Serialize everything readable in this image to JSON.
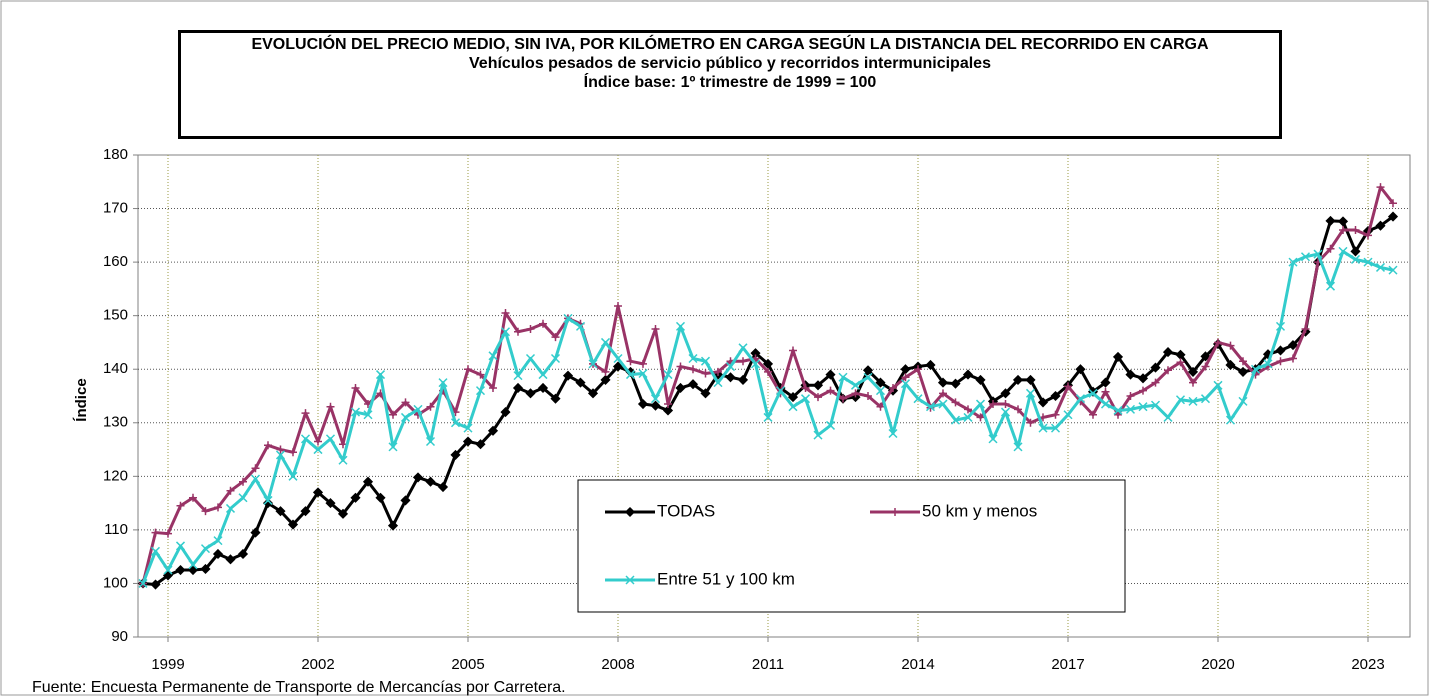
{
  "chart_data": {
    "type": "line",
    "title": "EVOLUCIÓN DEL PRECIO MEDIO, SIN IVA, POR KILÓMETRO EN CARGA SEGÚN LA DISTANCIA DEL RECORRIDO EN CARGA",
    "subtitle": "Vehículos pesados de servicio público y recorridos intermunicipales",
    "subtitle2": "Índice base: 1º trimestre de 1999 = 100",
    "ylabel": "Índice",
    "source": "Fuente: Encuesta Permanente de Transporte de Mercancías por Carretera.",
    "x": [
      1999,
      1999.25,
      1999.5,
      1999.75,
      2000,
      2000.25,
      2000.5,
      2000.75,
      2001,
      2001.25,
      2001.5,
      2001.75,
      2002,
      2002.25,
      2002.5,
      2002.75,
      2003,
      2003.25,
      2003.5,
      2003.75,
      2004,
      2004.25,
      2004.5,
      2004.75,
      2005,
      2005.25,
      2005.5,
      2005.75,
      2006,
      2006.25,
      2006.5,
      2006.75,
      2007,
      2007.25,
      2007.5,
      2007.75,
      2008,
      2008.25,
      2008.5,
      2008.75,
      2009,
      2009.25,
      2009.5,
      2009.75,
      2010,
      2010.25,
      2010.5,
      2010.75,
      2011,
      2011.25,
      2011.5,
      2011.75,
      2012,
      2012.25,
      2012.5,
      2012.75,
      2013,
      2013.25,
      2013.5,
      2013.75,
      2014,
      2014.25,
      2014.5,
      2014.75,
      2015,
      2015.25,
      2015.5,
      2015.75,
      2016,
      2016.25,
      2016.5,
      2016.75,
      2017,
      2017.25,
      2017.5,
      2017.75,
      2018,
      2018.25,
      2018.5,
      2018.75,
      2019,
      2019.25,
      2019.5,
      2019.75,
      2020,
      2020.25,
      2020.5,
      2020.75,
      2021,
      2021.25,
      2021.5,
      2021.75,
      2022,
      2022.25,
      2022.5,
      2022.75,
      2023,
      2023.25,
      2023.5,
      2023.75,
      2024
    ],
    "series": [
      {
        "name": "TODAS",
        "color": "#000000",
        "marker": "diamond",
        "values": [
          100,
          99.8,
          101.5,
          102.5,
          102.5,
          102.7,
          105.5,
          104.5,
          105.5,
          109.5,
          115,
          113.5,
          111,
          113.5,
          117,
          115,
          113,
          116,
          119,
          116,
          110.8,
          115.5,
          119.8,
          119,
          118,
          124,
          126.5,
          126,
          128.5,
          132,
          136.5,
          135.5,
          136.5,
          134.5,
          138.8,
          137.5,
          135.5,
          138,
          140.5,
          139.5,
          133.5,
          133.2,
          132.3,
          136.5,
          137.2,
          135.5,
          139,
          138.5,
          138,
          143,
          141,
          136.5,
          134.8,
          137,
          137,
          139,
          134.5,
          134.8,
          139.8,
          137.5,
          136,
          140,
          140.5,
          140.8,
          137.5,
          137.3,
          139,
          138,
          134,
          135.5,
          138,
          138,
          133.8,
          135,
          137,
          140,
          135.8,
          137.5,
          142.3,
          139,
          138.3,
          140.3,
          143.2,
          142.7,
          139.5,
          142.4,
          144.7,
          140.8,
          139.5,
          140,
          142.8,
          143.5,
          144.5,
          147,
          160,
          167.7,
          167.6,
          162,
          165.8,
          166.8,
          168.5
        ]
      },
      {
        "name": "50 km y menos",
        "color": "#993366",
        "marker": "plus",
        "values": [
          100,
          109.5,
          109.3,
          114.5,
          116,
          113.5,
          114.2,
          117.3,
          119,
          121.5,
          125.8,
          125,
          124.5,
          131.8,
          126.5,
          133,
          126,
          136.5,
          133.5,
          135.5,
          131.5,
          133.8,
          131.5,
          133,
          136,
          132,
          140,
          139,
          136.5,
          150.5,
          147,
          147.5,
          148.5,
          146,
          149.5,
          148.5,
          141,
          139.5,
          151.8,
          141.5,
          141,
          147.5,
          133.5,
          140.5,
          140,
          139.2,
          139.5,
          141.5,
          141.5,
          142,
          139.5,
          135.5,
          143.5,
          136.5,
          134.8,
          136,
          134.5,
          135.5,
          135,
          133,
          136.5,
          138.5,
          140,
          132.8,
          135.5,
          133.8,
          132.5,
          131,
          133.5,
          133.5,
          132.5,
          130,
          131,
          131.5,
          136.8,
          134,
          131.5,
          135.8,
          131.5,
          135,
          136,
          137.5,
          139.8,
          141.3,
          137.5,
          140.5,
          145,
          144.4,
          141.5,
          139,
          140.5,
          141.5,
          142,
          147.5,
          160,
          162.5,
          166,
          166,
          165,
          174,
          171
        ]
      },
      {
        "name": "Entre 51 y 100 km",
        "color": "#33cccc",
        "marker": "cross",
        "values": [
          100,
          106,
          102.5,
          107,
          103.5,
          106.5,
          108,
          114,
          116,
          119.5,
          115.5,
          124,
          120,
          127,
          125,
          127,
          123,
          132,
          131.5,
          139,
          125.5,
          131,
          132.5,
          126.5,
          137.5,
          130,
          129,
          136,
          142.5,
          147,
          138.8,
          142,
          139,
          142,
          149.5,
          148,
          141,
          145,
          142,
          139,
          139.2,
          134.5,
          139,
          148,
          142,
          141.5,
          137.5,
          140.5,
          144,
          141,
          131,
          136,
          133,
          134.5,
          127.7,
          129.5,
          138.5,
          137,
          138.5,
          136,
          128,
          137.3,
          134.5,
          133,
          133.5,
          130.5,
          131,
          133.5,
          127,
          132,
          125.5,
          135.5,
          129,
          129,
          131.5,
          134.5,
          135.5,
          133.5,
          132.3,
          132.5,
          133,
          133.3,
          131,
          134.3,
          134,
          134.5,
          137,
          130.5,
          134,
          140,
          141,
          148,
          160,
          161,
          161.5,
          155.5,
          162,
          160.5,
          160,
          159,
          158.5
        ]
      }
    ],
    "xlim": [
      1998.9,
      2024.34
    ],
    "xticks": [
      {
        "value": 1999.5,
        "label": "1999"
      },
      {
        "value": 2002.5,
        "label": "2002"
      },
      {
        "value": 2005.5,
        "label": "2005"
      },
      {
        "value": 2008.5,
        "label": "2008"
      },
      {
        "value": 2011.5,
        "label": "2011"
      },
      {
        "value": 2014.5,
        "label": "2014"
      },
      {
        "value": 2017.5,
        "label": "2017"
      },
      {
        "value": 2020.5,
        "label": "2020"
      },
      {
        "value": 2023.5,
        "label": "2023"
      }
    ],
    "ylim": [
      90,
      180
    ],
    "yticks": [
      90,
      100,
      110,
      120,
      130,
      140,
      150,
      160,
      170,
      180
    ],
    "grid": true
  }
}
